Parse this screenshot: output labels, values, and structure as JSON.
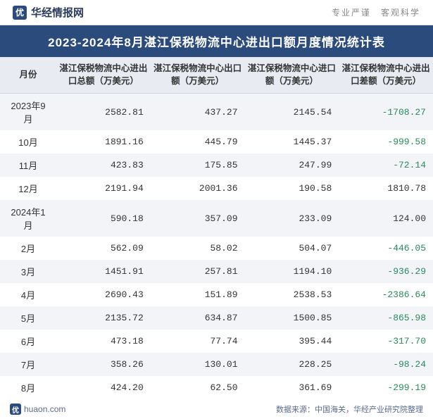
{
  "header": {
    "site_name": "华经情报网",
    "logo_char": "优",
    "tagline": "专业严谨　客观科学"
  },
  "title": "2023-2024年8月湛江保税物流中心进出口额月度情况统计表",
  "watermark": "华经产业研究院",
  "columns": [
    "月份",
    "湛江保税物流中心进出口总额（万美元）",
    "湛江保税物流中心出口额（万美元）",
    "湛江保税物流中心进口额（万美元）",
    "湛江保税物流中心进出口差额（万美元）"
  ],
  "rows": [
    {
      "month": "2023年9月",
      "total": "2582.81",
      "export": "437.27",
      "import": "2145.54",
      "diff": "-1708.27",
      "neg": true
    },
    {
      "month": "10月",
      "total": "1891.16",
      "export": "445.79",
      "import": "1445.37",
      "diff": "-999.58",
      "neg": true
    },
    {
      "month": "11月",
      "total": "423.83",
      "export": "175.85",
      "import": "247.99",
      "diff": "-72.14",
      "neg": true
    },
    {
      "month": "12月",
      "total": "2191.94",
      "export": "2001.36",
      "import": "190.58",
      "diff": "1810.78",
      "neg": false
    },
    {
      "month": "2024年1月",
      "total": "590.18",
      "export": "357.09",
      "import": "233.09",
      "diff": "124.00",
      "neg": false
    },
    {
      "month": "2月",
      "total": "562.09",
      "export": "58.02",
      "import": "504.07",
      "diff": "-446.05",
      "neg": true
    },
    {
      "month": "3月",
      "total": "1451.91",
      "export": "257.81",
      "import": "1194.10",
      "diff": "-936.29",
      "neg": true
    },
    {
      "month": "4月",
      "total": "2690.43",
      "export": "151.89",
      "import": "2538.53",
      "diff": "-2386.64",
      "neg": true
    },
    {
      "month": "5月",
      "total": "2135.72",
      "export": "634.87",
      "import": "1500.85",
      "diff": "-865.98",
      "neg": true
    },
    {
      "month": "6月",
      "total": "473.18",
      "export": "77.74",
      "import": "395.44",
      "diff": "-317.70",
      "neg": true
    },
    {
      "month": "7月",
      "total": "358.26",
      "export": "130.01",
      "import": "228.25",
      "diff": "-98.24",
      "neg": true
    },
    {
      "month": "8月",
      "total": "424.20",
      "export": "62.50",
      "import": "361.69",
      "diff": "-299.19",
      "neg": true
    }
  ],
  "footer": {
    "url": "huaon.com",
    "source": "数据来源：中国海关，华经产业研究院整理"
  },
  "colors": {
    "title_bg": "#2a4b7c",
    "header_row_bg": "#e8ecf2",
    "odd_row_bg": "#f2f4f7",
    "even_row_bg": "#ffffff",
    "neg_color": "#2a8a5a",
    "text_color": "#333333"
  }
}
